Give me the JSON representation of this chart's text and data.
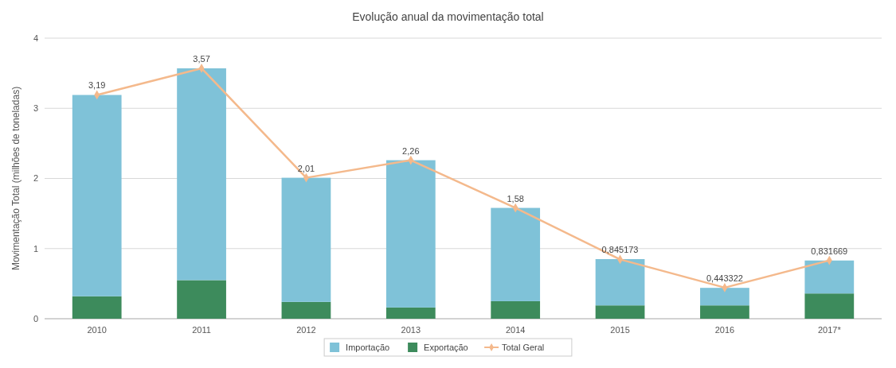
{
  "chart_data": {
    "type": "bar",
    "title": "Evolução anual da movimentação total",
    "ylabel": "Movimentação Total (milhões de toneladas)",
    "categories": [
      "2010",
      "2011",
      "2012",
      "2013",
      "2014",
      "2015",
      "2016",
      "2017*"
    ],
    "stacked": true,
    "ylim": [
      0,
      4
    ],
    "yticks": [
      0,
      1,
      2,
      3,
      4
    ],
    "grid": "y",
    "legend": "bottom",
    "series": [
      {
        "name": "Exportação",
        "color": "#3d8b5c",
        "values": [
          0.32,
          0.55,
          0.24,
          0.16,
          0.25,
          0.19,
          0.19,
          0.36
        ]
      },
      {
        "name": "Importação",
        "color": "#7fc2d8",
        "values": [
          2.87,
          3.02,
          1.77,
          2.1,
          1.33,
          0.66,
          0.25,
          0.47
        ]
      },
      {
        "name": "Total Geral",
        "type": "line",
        "color": "#f4b98c",
        "marker": "diamond",
        "values": [
          3.19,
          3.57,
          2.01,
          2.26,
          1.58,
          0.845173,
          0.443322,
          0.831669
        ],
        "value_labels": [
          "3,19",
          "3,57",
          "2,01",
          "2,26",
          "1,58",
          "0,845173",
          "0,443322",
          "0,831669"
        ]
      }
    ]
  }
}
